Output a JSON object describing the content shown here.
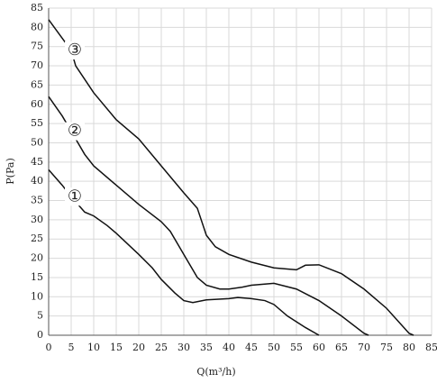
{
  "chart_data": {
    "type": "line",
    "x_label": "Q(m³/h)",
    "y_label": "P(Pa)",
    "xlim": [
      0,
      85
    ],
    "ylim": [
      0,
      85
    ],
    "xticks": [
      0,
      5,
      10,
      15,
      20,
      25,
      30,
      35,
      40,
      45,
      50,
      55,
      60,
      65,
      70,
      75,
      80,
      85
    ],
    "yticks": [
      0,
      5,
      10,
      15,
      20,
      25,
      30,
      35,
      40,
      45,
      50,
      55,
      60,
      65,
      70,
      75,
      80,
      85
    ],
    "grid": true,
    "series": [
      {
        "name": "①",
        "color": "#111111",
        "x": [
          0,
          3,
          5,
          8,
          10,
          13,
          15,
          20,
          23,
          25,
          28,
          30,
          32,
          35,
          40,
          42,
          45,
          48,
          50,
          53,
          57,
          60
        ],
        "values": [
          43,
          39,
          36,
          32,
          31,
          28.5,
          26.5,
          21,
          17.5,
          14.5,
          11,
          9,
          8.5,
          9.2,
          9.5,
          9.8,
          9.5,
          9,
          8,
          5,
          2,
          0
        ]
      },
      {
        "name": "②",
        "color": "#111111",
        "x": [
          0,
          3,
          5,
          8,
          10,
          15,
          20,
          25,
          27,
          30,
          33,
          35,
          38,
          40,
          43,
          45,
          50,
          55,
          60,
          65,
          70,
          71
        ],
        "values": [
          62,
          57,
          53,
          47,
          44,
          39,
          34,
          29.5,
          27,
          21,
          15,
          13,
          12,
          12,
          12.5,
          13,
          13.5,
          12,
          9,
          5,
          0.5,
          0
        ]
      },
      {
        "name": "③",
        "color": "#111111",
        "x": [
          0,
          2.5,
          5,
          6,
          10,
          15,
          20,
          25,
          30,
          33,
          35,
          37,
          40,
          45,
          50,
          55,
          57,
          60,
          65,
          70,
          75,
          80,
          81
        ],
        "values": [
          82,
          78,
          74,
          70,
          63,
          56,
          51,
          44,
          37,
          33,
          26,
          23,
          21,
          19,
          17.5,
          17,
          18.2,
          18.3,
          16,
          12,
          7,
          0.5,
          0
        ]
      }
    ]
  }
}
